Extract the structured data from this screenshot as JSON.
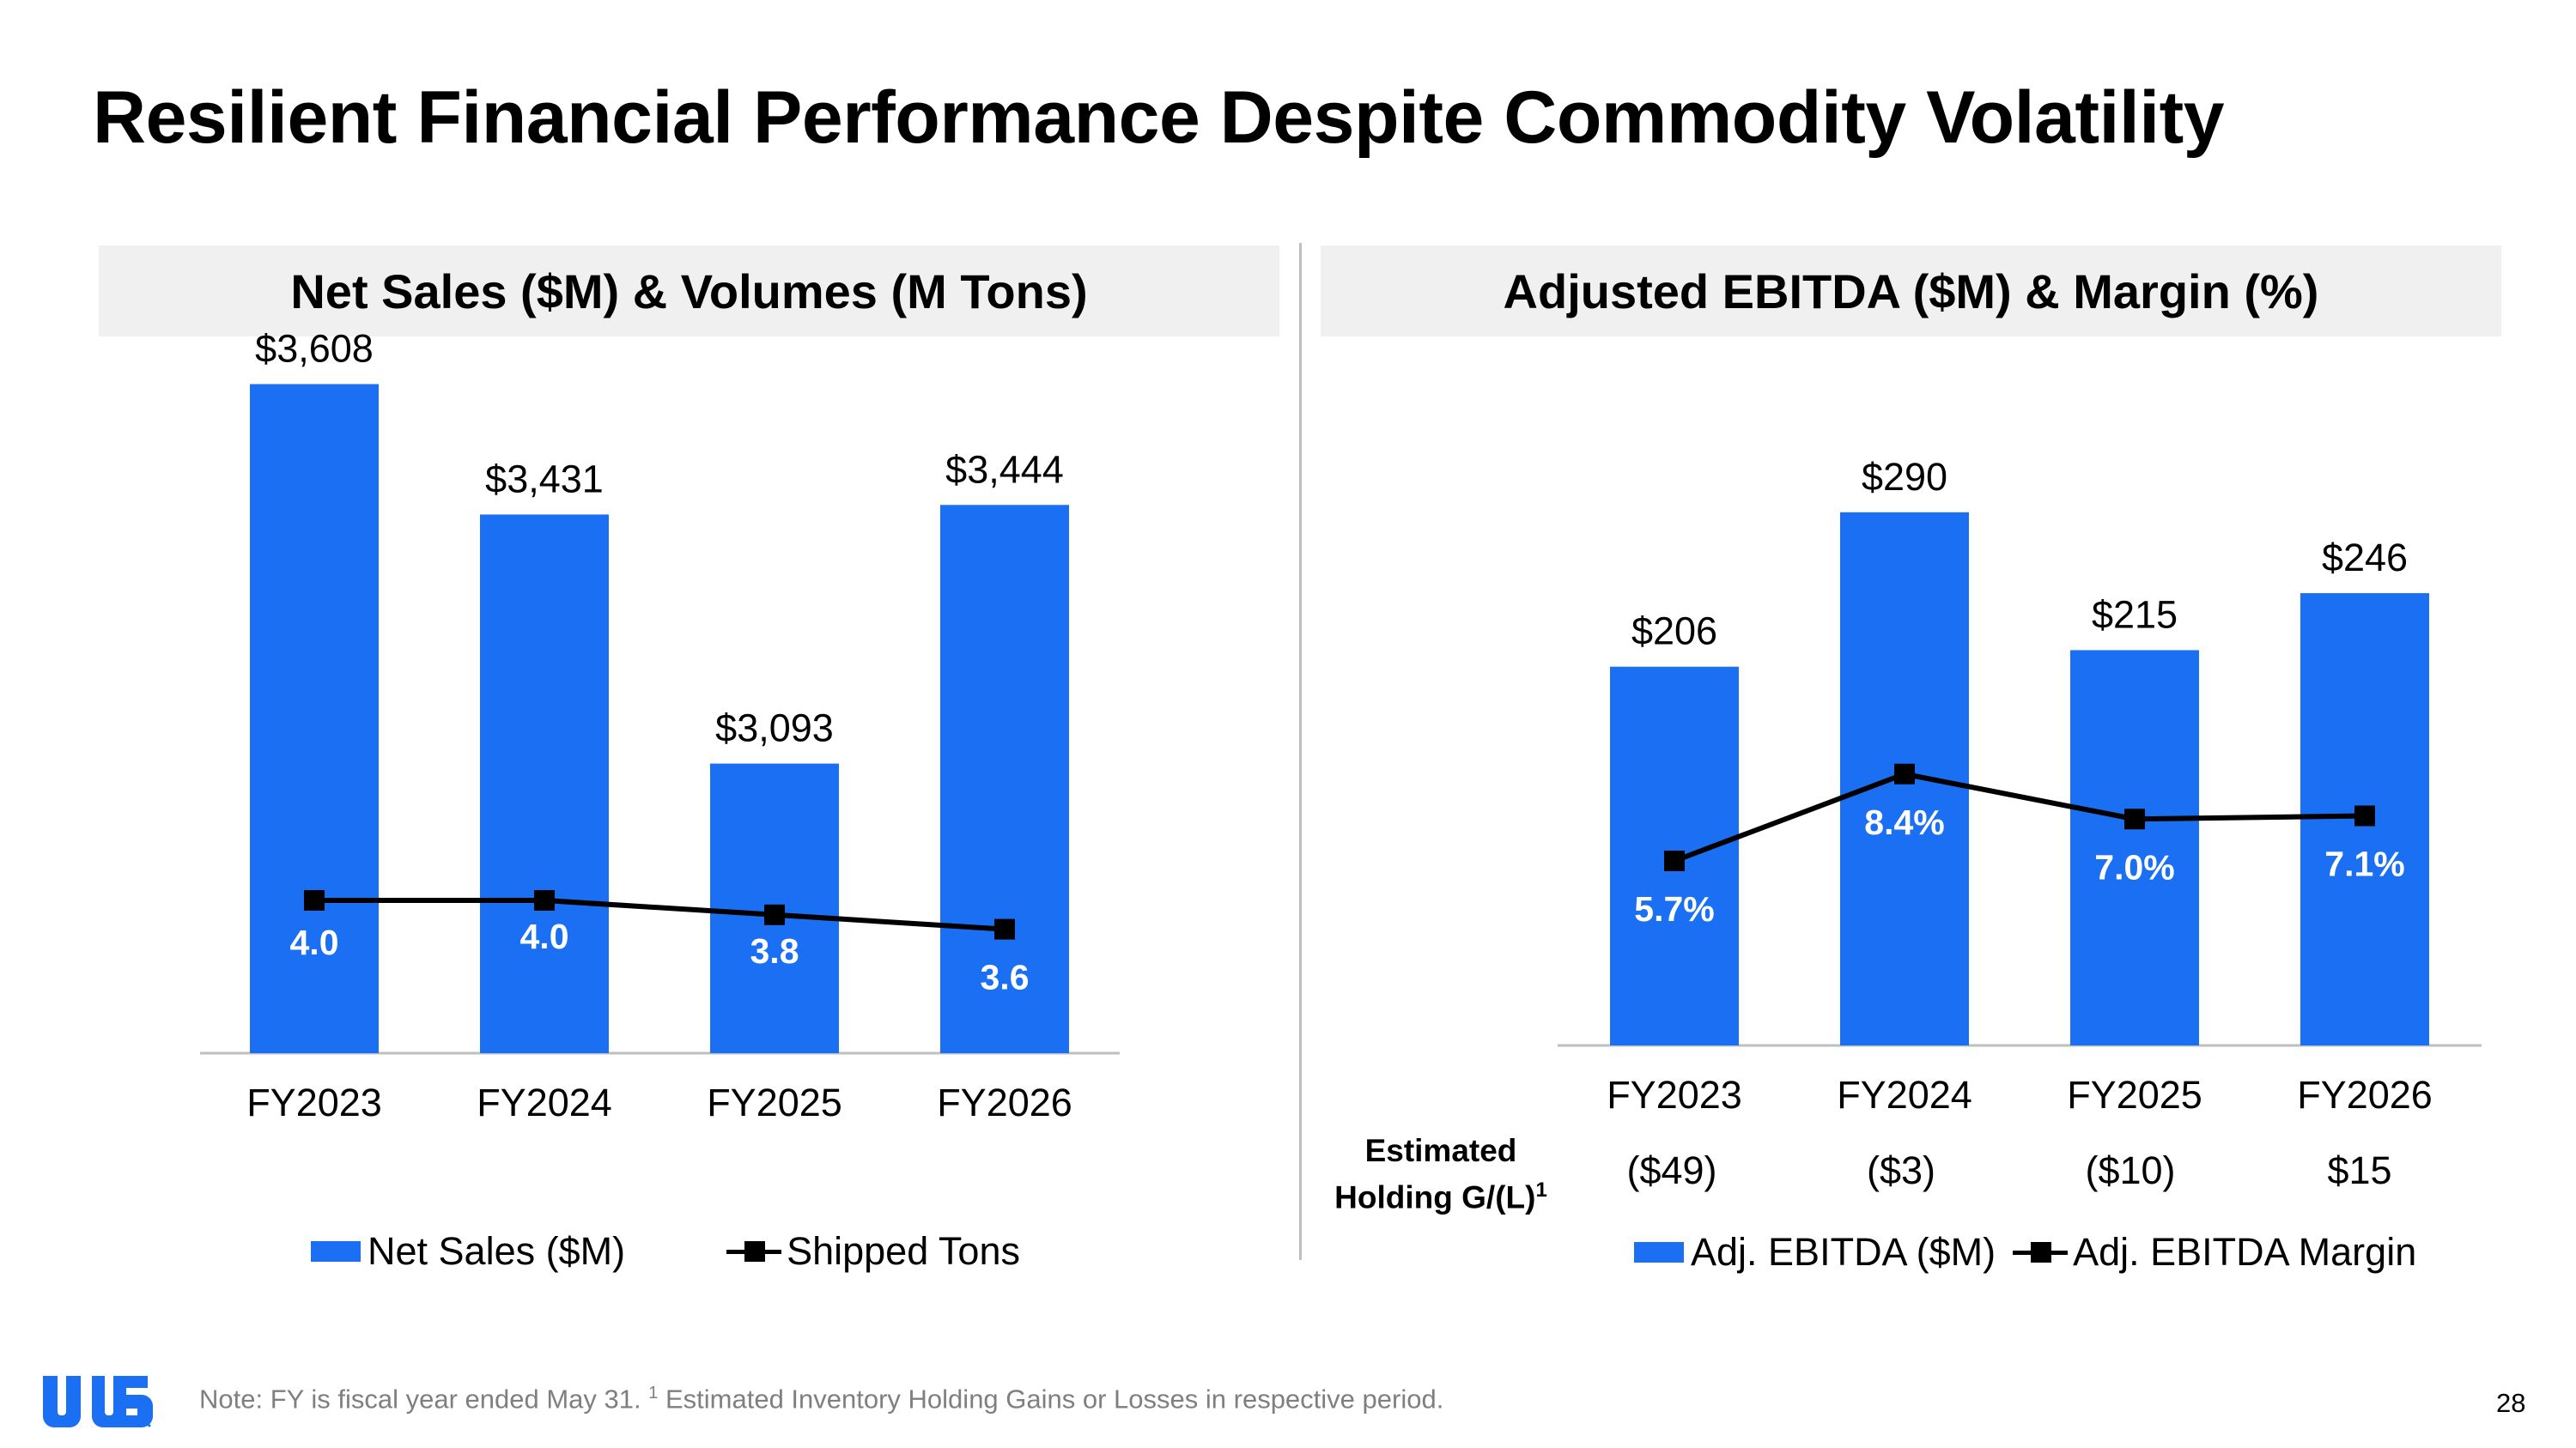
{
  "title": "Resilient Financial Performance Despite Commodity Volatility",
  "colors": {
    "bar": "#1a6ff2",
    "line": "#000000",
    "header_bg": "#f0f0f0",
    "logo": "#1a6ff2"
  },
  "left_panel": {
    "header": "Net Sales ($M) & Volumes (M Tons)",
    "legend": [
      {
        "label": "Net Sales ($M)",
        "kind": "bar"
      },
      {
        "label": "Shipped Tons",
        "kind": "line"
      }
    ]
  },
  "right_panel": {
    "header": "Adjusted EBITDA ($M) & Margin (%)",
    "legend": [
      {
        "label": "Adj. EBITDA ($M)",
        "kind": "bar"
      },
      {
        "label": "Adj. EBITDA Margin",
        "kind": "line"
      }
    ],
    "holding_row": {
      "label_line1": "Estimated",
      "label_line2": "Holding G/(L)",
      "label_sup": "1",
      "values": [
        "($49)",
        "($3)",
        "($10)",
        "$15"
      ]
    }
  },
  "chart_data": [
    {
      "type": "bar",
      "categories": [
        "FY2023",
        "FY2024",
        "FY2025",
        "FY2026"
      ],
      "series": [
        {
          "name": "Net Sales ($M)",
          "type": "bar",
          "values": [
            3608,
            3431,
            3093,
            3444
          ],
          "labels": [
            "$3,608",
            "$3,431",
            "$3,093",
            "$3,444"
          ]
        },
        {
          "name": "Shipped Tons",
          "type": "line",
          "values": [
            4.0,
            4.0,
            3.8,
            3.6
          ],
          "labels": [
            "4.0",
            "4.0",
            "3.8",
            "3.6"
          ]
        }
      ]
    },
    {
      "type": "bar",
      "categories": [
        "FY2023",
        "FY2024",
        "FY2025",
        "FY2026"
      ],
      "series": [
        {
          "name": "Adj. EBITDA ($M)",
          "type": "bar",
          "values": [
            206,
            290,
            215,
            246
          ],
          "labels": [
            "$206",
            "$290",
            "$215",
            "$246"
          ]
        },
        {
          "name": "Adj. EBITDA Margin",
          "type": "line",
          "values": [
            5.7,
            8.4,
            7.0,
            7.1
          ],
          "labels": [
            "5.7%",
            "8.4%",
            "7.0%",
            "7.1%"
          ]
        }
      ]
    }
  ],
  "footnote": {
    "text1": "Note: FY is fiscal year ended May 31. ",
    "sup": "1",
    "text2": " Estimated Inventory Holding Gains or Losses in respective period."
  },
  "page_number": "28",
  "logo_icon": "company-logo"
}
